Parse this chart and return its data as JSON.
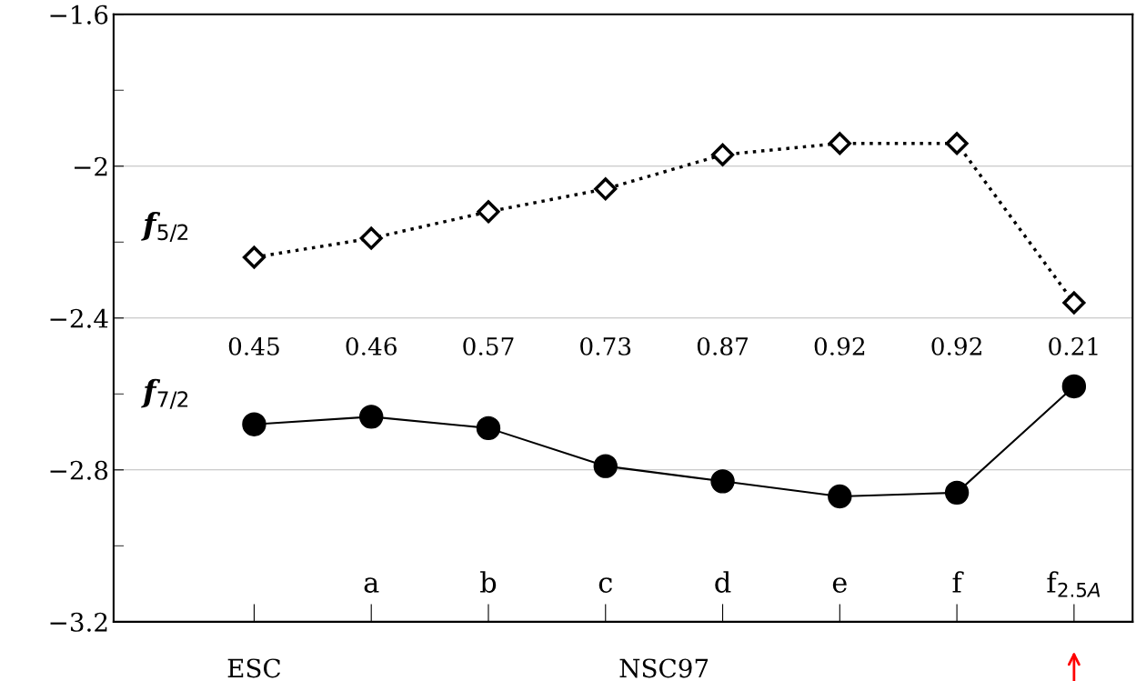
{
  "chart_data": {
    "type": "line",
    "categories": [
      null,
      "a",
      "b",
      "c",
      "d",
      "e",
      "f",
      "f$_{2.5A}$"
    ],
    "series": [
      {
        "name": "f$_{5/2}$",
        "color": "#000000",
        "marker": "diamond",
        "line_style": "dotted",
        "values": [
          -2.24,
          -2.19,
          -2.12,
          -2.06,
          -1.97,
          -1.94,
          -1.94,
          -2.36
        ]
      },
      {
        "name": "f$_{7/2}$",
        "color": "#000000",
        "marker": "circle",
        "line_style": "solid",
        "values": [
          -2.68,
          -2.66,
          -2.69,
          -2.79,
          -2.83,
          -2.87,
          -2.86,
          -2.58
        ]
      }
    ],
    "ylim": [
      -3.2,
      -1.6
    ],
    "yticks": [
      -3.2,
      {
        "value": -3.0,
        "label": null
      },
      -2.8,
      {
        "value": -2.6,
        "label": null
      },
      -2.4,
      {
        "value": -2.2,
        "label": null
      },
      -2.0,
      {
        "value": -1.8,
        "label": null
      },
      -1.6
    ],
    "grid": "y",
    "annotations": [
      "0.45",
      "0.46",
      "0.57",
      "0.73",
      "0.87",
      "0.92",
      "0.92",
      "0.21",
      "ESC",
      "NSC97"
    ]
  }
}
